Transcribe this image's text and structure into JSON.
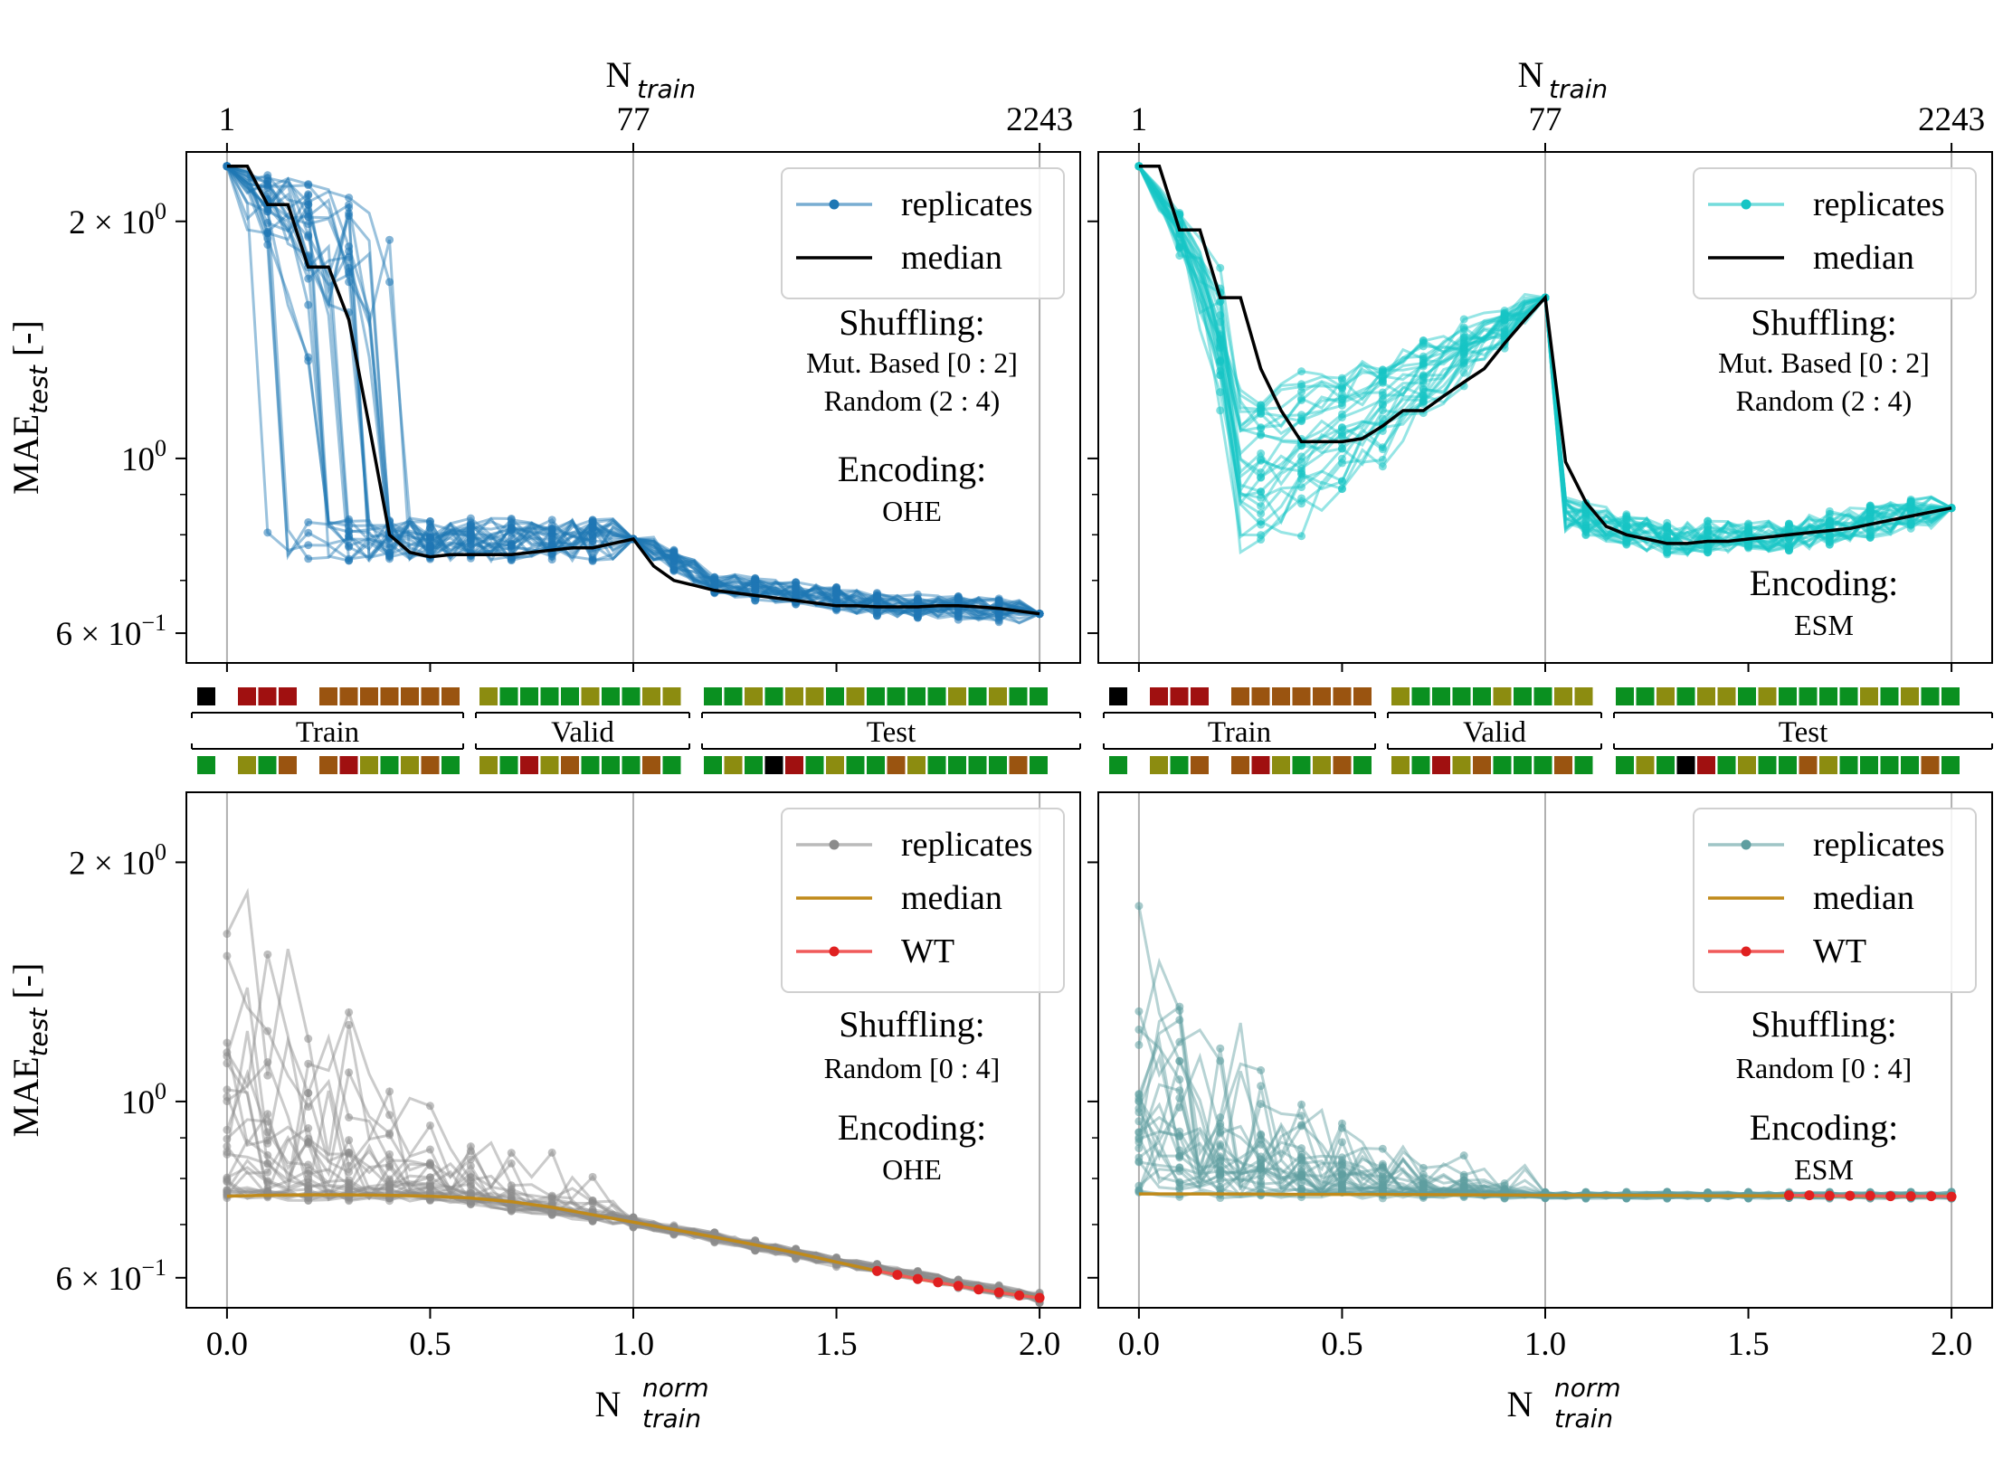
{
  "chart_data": [
    {
      "id": "p1",
      "type": "line",
      "top_axis": {
        "label": "N",
        "label_sub": "train",
        "ticks": [
          {
            "x": 0,
            "label": "1"
          },
          {
            "x": 1,
            "label": "77"
          },
          {
            "x": 2,
            "label": "2243"
          }
        ]
      },
      "xlabel": "N",
      "xlabel_sub": "train",
      "xlabel_sup": "norm",
      "ylabel": "MAE",
      "ylabel_sub": "test",
      "ylabel_tail": " [-]",
      "yscale": "log",
      "ylim": [
        0.55,
        2.45
      ],
      "xlim": [
        -0.1,
        2.1
      ],
      "yticks": [
        {
          "v": 0.6,
          "m": "6 × 10",
          "e": "−1"
        },
        {
          "v": 1.0,
          "m": "10",
          "e": "0"
        },
        {
          "v": 2.0,
          "m": "2 × 10",
          "e": "0"
        }
      ],
      "xticks": [
        "0.0",
        "0.5",
        "1.0",
        "1.5",
        "2.0"
      ],
      "replicate_color": "#1f77b4",
      "median_color": "#000000",
      "legend": [
        "replicates",
        "median"
      ],
      "annotation": {
        "shuffle_title": "Shuffling:",
        "shuffle_lines": [
          "Mut. Based [0 : 2]",
          "Random (2 : 4)"
        ],
        "enc_title": "Encoding:",
        "enc_value": "OHE"
      },
      "median": {
        "x": [
          0,
          0.05,
          0.1,
          0.15,
          0.2,
          0.25,
          0.3,
          0.35,
          0.4,
          0.45,
          0.5,
          0.55,
          0.6,
          0.65,
          0.7,
          0.75,
          0.8,
          0.85,
          0.9,
          0.95,
          1.0,
          1.05,
          1.1,
          1.15,
          1.2,
          1.25,
          1.3,
          1.35,
          1.4,
          1.45,
          1.5,
          1.55,
          1.6,
          1.65,
          1.7,
          1.75,
          1.8,
          1.85,
          1.9,
          1.95,
          2.0
        ],
        "y": [
          2.35,
          2.35,
          2.1,
          2.1,
          1.75,
          1.75,
          1.5,
          1.1,
          0.8,
          0.76,
          0.75,
          0.755,
          0.755,
          0.755,
          0.755,
          0.76,
          0.765,
          0.77,
          0.77,
          0.78,
          0.79,
          0.73,
          0.7,
          0.69,
          0.68,
          0.675,
          0.67,
          0.665,
          0.66,
          0.655,
          0.65,
          0.65,
          0.648,
          0.648,
          0.648,
          0.65,
          0.65,
          0.648,
          0.645,
          0.64,
          0.635
        ]
      }
    },
    {
      "id": "p2",
      "type": "line",
      "top_axis": {
        "label": "N",
        "label_sub": "train",
        "ticks": [
          {
            "x": 0,
            "label": "1"
          },
          {
            "x": 1,
            "label": "77"
          },
          {
            "x": 2,
            "label": "2243"
          }
        ]
      },
      "xlabel": "N",
      "xlabel_sub": "train",
      "xlabel_sup": "norm",
      "ylabel": "",
      "yscale": "log",
      "ylim": [
        0.55,
        2.45
      ],
      "xlim": [
        -0.1,
        2.1
      ],
      "xticks": [
        "0.0",
        "0.5",
        "1.0",
        "1.5",
        "2.0"
      ],
      "replicate_color": "#17c5c5",
      "median_color": "#000000",
      "legend": [
        "replicates",
        "median"
      ],
      "annotation": {
        "shuffle_title": "Shuffling:",
        "shuffle_lines": [
          "Mut. Based [0 : 2]",
          "Random (2 : 4)"
        ],
        "enc_title": "Encoding:",
        "enc_value": "ESM"
      },
      "median": {
        "x": [
          0,
          0.05,
          0.1,
          0.15,
          0.2,
          0.25,
          0.3,
          0.35,
          0.4,
          0.45,
          0.5,
          0.55,
          0.6,
          0.65,
          0.7,
          0.75,
          0.8,
          0.85,
          0.9,
          0.95,
          1.0,
          1.05,
          1.1,
          1.15,
          1.2,
          1.25,
          1.3,
          1.35,
          1.4,
          1.45,
          1.5,
          1.55,
          1.6,
          1.65,
          1.7,
          1.75,
          1.8,
          1.85,
          1.9,
          1.95,
          2.0
        ],
        "y": [
          2.35,
          2.35,
          1.95,
          1.95,
          1.6,
          1.6,
          1.3,
          1.15,
          1.05,
          1.05,
          1.05,
          1.06,
          1.1,
          1.15,
          1.15,
          1.2,
          1.25,
          1.3,
          1.4,
          1.5,
          1.6,
          0.99,
          0.88,
          0.82,
          0.8,
          0.79,
          0.78,
          0.78,
          0.785,
          0.785,
          0.79,
          0.795,
          0.8,
          0.805,
          0.81,
          0.815,
          0.825,
          0.835,
          0.845,
          0.855,
          0.865
        ]
      }
    },
    {
      "id": "p3",
      "type": "line",
      "xlabel": "N",
      "xlabel_sub": "train",
      "xlabel_sup": "norm",
      "ylabel": "MAE",
      "ylabel_sub": "test",
      "ylabel_tail": " [-]",
      "yscale": "log",
      "ylim": [
        0.55,
        2.45
      ],
      "xlim": [
        -0.1,
        2.1
      ],
      "yticks": [
        {
          "v": 0.6,
          "m": "6 × 10",
          "e": "−1"
        },
        {
          "v": 1.0,
          "m": "10",
          "e": "0"
        },
        {
          "v": 2.0,
          "m": "2 × 10",
          "e": "0"
        }
      ],
      "xticks": [
        "0.0",
        "0.5",
        "1.0",
        "1.5",
        "2.0"
      ],
      "replicate_color": "#8c8c8c",
      "median_color": "#c08a1a",
      "wt_color": "#f05a5a",
      "legend": [
        "replicates",
        "median",
        "WT"
      ],
      "annotation": {
        "shuffle_title": "Shuffling:",
        "shuffle_lines": [
          "Random [0 : 4]"
        ],
        "enc_title": "Encoding:",
        "enc_value": "OHE"
      },
      "median": {
        "x": [
          0,
          0.1,
          0.2,
          0.3,
          0.4,
          0.5,
          0.6,
          0.7,
          0.8,
          0.9,
          1.0,
          1.1,
          1.2,
          1.3,
          1.4,
          1.5,
          1.6,
          1.7,
          1.8,
          1.9,
          2.0
        ],
        "y": [
          0.76,
          0.762,
          0.763,
          0.763,
          0.762,
          0.76,
          0.756,
          0.748,
          0.736,
          0.72,
          0.705,
          0.69,
          0.675,
          0.66,
          0.645,
          0.628,
          0.612,
          0.598,
          0.586,
          0.575,
          0.566
        ]
      },
      "wt": {
        "x": [
          1.6,
          1.65,
          1.7,
          1.75,
          1.8,
          1.85,
          1.9,
          1.95,
          2.0
        ],
        "y": [
          0.612,
          0.605,
          0.598,
          0.592,
          0.586,
          0.58,
          0.575,
          0.57,
          0.566
        ]
      }
    },
    {
      "id": "p4",
      "type": "line",
      "xlabel": "N",
      "xlabel_sub": "train",
      "xlabel_sup": "norm",
      "ylabel": "",
      "yscale": "log",
      "ylim": [
        0.55,
        2.45
      ],
      "xlim": [
        -0.1,
        2.1
      ],
      "xticks": [
        "0.0",
        "0.5",
        "1.0",
        "1.5",
        "2.0"
      ],
      "replicate_color": "#5f9ea0",
      "median_color": "#c08a1a",
      "wt_color": "#f05a5a",
      "legend": [
        "replicates",
        "median",
        "WT"
      ],
      "annotation": {
        "shuffle_title": "Shuffling:",
        "shuffle_lines": [
          "Random [0 : 4]"
        ],
        "enc_title": "Encoding:",
        "enc_value": "ESM"
      },
      "median": {
        "x": [
          0,
          0.2,
          0.4,
          0.6,
          0.8,
          1.0,
          1.2,
          1.4,
          1.6,
          1.8,
          2.0
        ],
        "y": [
          0.765,
          0.765,
          0.764,
          0.764,
          0.763,
          0.762,
          0.762,
          0.761,
          0.761,
          0.76,
          0.76
        ]
      },
      "wt": {
        "x": [
          1.6,
          1.65,
          1.7,
          1.75,
          1.8,
          1.85,
          1.9,
          1.95,
          2.0
        ],
        "y": [
          0.762,
          0.762,
          0.761,
          0.761,
          0.761,
          0.76,
          0.76,
          0.76,
          0.759
        ]
      }
    }
  ],
  "strips": {
    "segment_labels": [
      "Train",
      "Valid",
      "Test"
    ],
    "colors": {
      "k": "#000000",
      "r": "#a01010",
      "b": "#9a5410",
      "o": "#8c8c10",
      "g": "#0a9020",
      "w": "#ffffff"
    },
    "upper": {
      "train": "k w r r r w b b b b b b b",
      "valid": "o g g g g o g g o o",
      "test": "g g o g o o g o g g g g o g o g g"
    },
    "lower": {
      "train": "g w o g b w b r o g o b g",
      "valid": "o g r o b g g g b g",
      "test": "g o g k r g o g g b o g g g g b g"
    }
  }
}
